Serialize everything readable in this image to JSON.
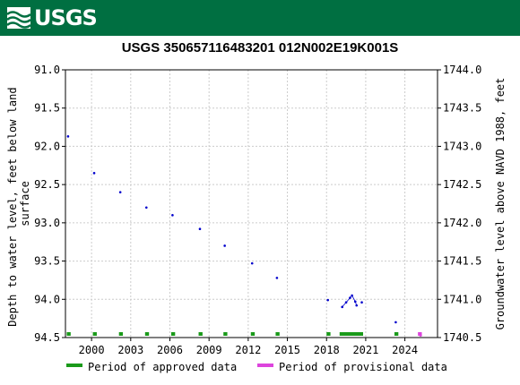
{
  "header": {
    "logo_text": "USGS",
    "color": "#006f41"
  },
  "chart_data": {
    "type": "scatter",
    "title": "USGS 350657116483201 012N002E19K001S",
    "ylabel_left": "Depth to water level, feet below land surface",
    "ylabel_right": "Groundwater level above NAVD 1988, feet",
    "y_left": {
      "min": 91.0,
      "max": 94.5,
      "inverted": true,
      "ticks": [
        "91.0",
        "91.5",
        "92.0",
        "92.5",
        "93.0",
        "93.5",
        "94.0",
        "94.5"
      ]
    },
    "y_right": {
      "min": 1740.5,
      "max": 1744.0,
      "ticks": [
        "1744.0",
        "1743.5",
        "1743.0",
        "1742.5",
        "1742.0",
        "1741.5",
        "1741.0",
        "1740.5"
      ]
    },
    "x": {
      "min": 1998.0,
      "max": 2026.5,
      "ticks": [
        {
          "value": 2000,
          "label": "2000"
        },
        {
          "value": 2003,
          "label": "2003"
        },
        {
          "value": 2006,
          "label": "2006"
        },
        {
          "value": 2009,
          "label": "2009"
        },
        {
          "value": 2012,
          "label": "2012"
        },
        {
          "value": 2015,
          "label": "2015"
        },
        {
          "value": 2018,
          "label": "2018"
        },
        {
          "value": 2021,
          "label": "2021"
        },
        {
          "value": 2024,
          "label": "2024"
        }
      ]
    },
    "points": [
      {
        "x": 1998.2,
        "y": 91.87
      },
      {
        "x": 2000.2,
        "y": 92.35
      },
      {
        "x": 2002.2,
        "y": 92.6
      },
      {
        "x": 2004.2,
        "y": 92.8
      },
      {
        "x": 2006.2,
        "y": 92.9
      },
      {
        "x": 2008.3,
        "y": 93.08
      },
      {
        "x": 2010.2,
        "y": 93.3
      },
      {
        "x": 2012.3,
        "y": 93.53
      },
      {
        "x": 2014.2,
        "y": 93.72
      },
      {
        "x": 2018.1,
        "y": 94.01
      },
      {
        "x": 2019.2,
        "y": 94.1
      },
      {
        "x": 2019.5,
        "y": 94.04
      },
      {
        "x": 2019.8,
        "y": 93.98
      },
      {
        "x": 2019.95,
        "y": 93.95
      },
      {
        "x": 2020.2,
        "y": 94.03
      },
      {
        "x": 2020.3,
        "y": 94.08
      },
      {
        "x": 2020.7,
        "y": 94.04
      },
      {
        "x": 2023.3,
        "y": 94.3
      }
    ],
    "connected_segment": [
      {
        "x": 2019.2,
        "y": 94.1
      },
      {
        "x": 2019.5,
        "y": 94.04
      },
      {
        "x": 2019.8,
        "y": 93.98
      },
      {
        "x": 2019.95,
        "y": 93.95
      },
      {
        "x": 2020.2,
        "y": 94.03
      },
      {
        "x": 2020.3,
        "y": 94.08
      }
    ],
    "provisional_point": {
      "x": 2025.2,
      "y": 94.47
    },
    "approved_periods": [
      {
        "start": 1998.1,
        "end": 1998.4
      },
      {
        "start": 2000.1,
        "end": 2000.4
      },
      {
        "start": 2002.1,
        "end": 2002.4
      },
      {
        "start": 2004.1,
        "end": 2004.4
      },
      {
        "start": 2006.1,
        "end": 2006.4
      },
      {
        "start": 2008.2,
        "end": 2008.5
      },
      {
        "start": 2010.1,
        "end": 2010.4
      },
      {
        "start": 2012.2,
        "end": 2012.5
      },
      {
        "start": 2014.1,
        "end": 2014.4
      },
      {
        "start": 2018.0,
        "end": 2018.3
      },
      {
        "start": 2019.0,
        "end": 2020.8
      },
      {
        "start": 2023.2,
        "end": 2023.5
      }
    ],
    "provisional_periods": [
      {
        "start": 2025.0,
        "end": 2025.3
      }
    ],
    "legend": [
      {
        "label": "Period of approved data",
        "color": "#1a9a1a"
      },
      {
        "label": "Period of provisional data",
        "color": "#dd44dd"
      }
    ],
    "colors": {
      "point": "#0000cc",
      "approved": "#1a9a1a",
      "provisional": "#dd44dd",
      "grid": "#cccccc"
    },
    "grid": true,
    "legend_position": "bottom"
  }
}
